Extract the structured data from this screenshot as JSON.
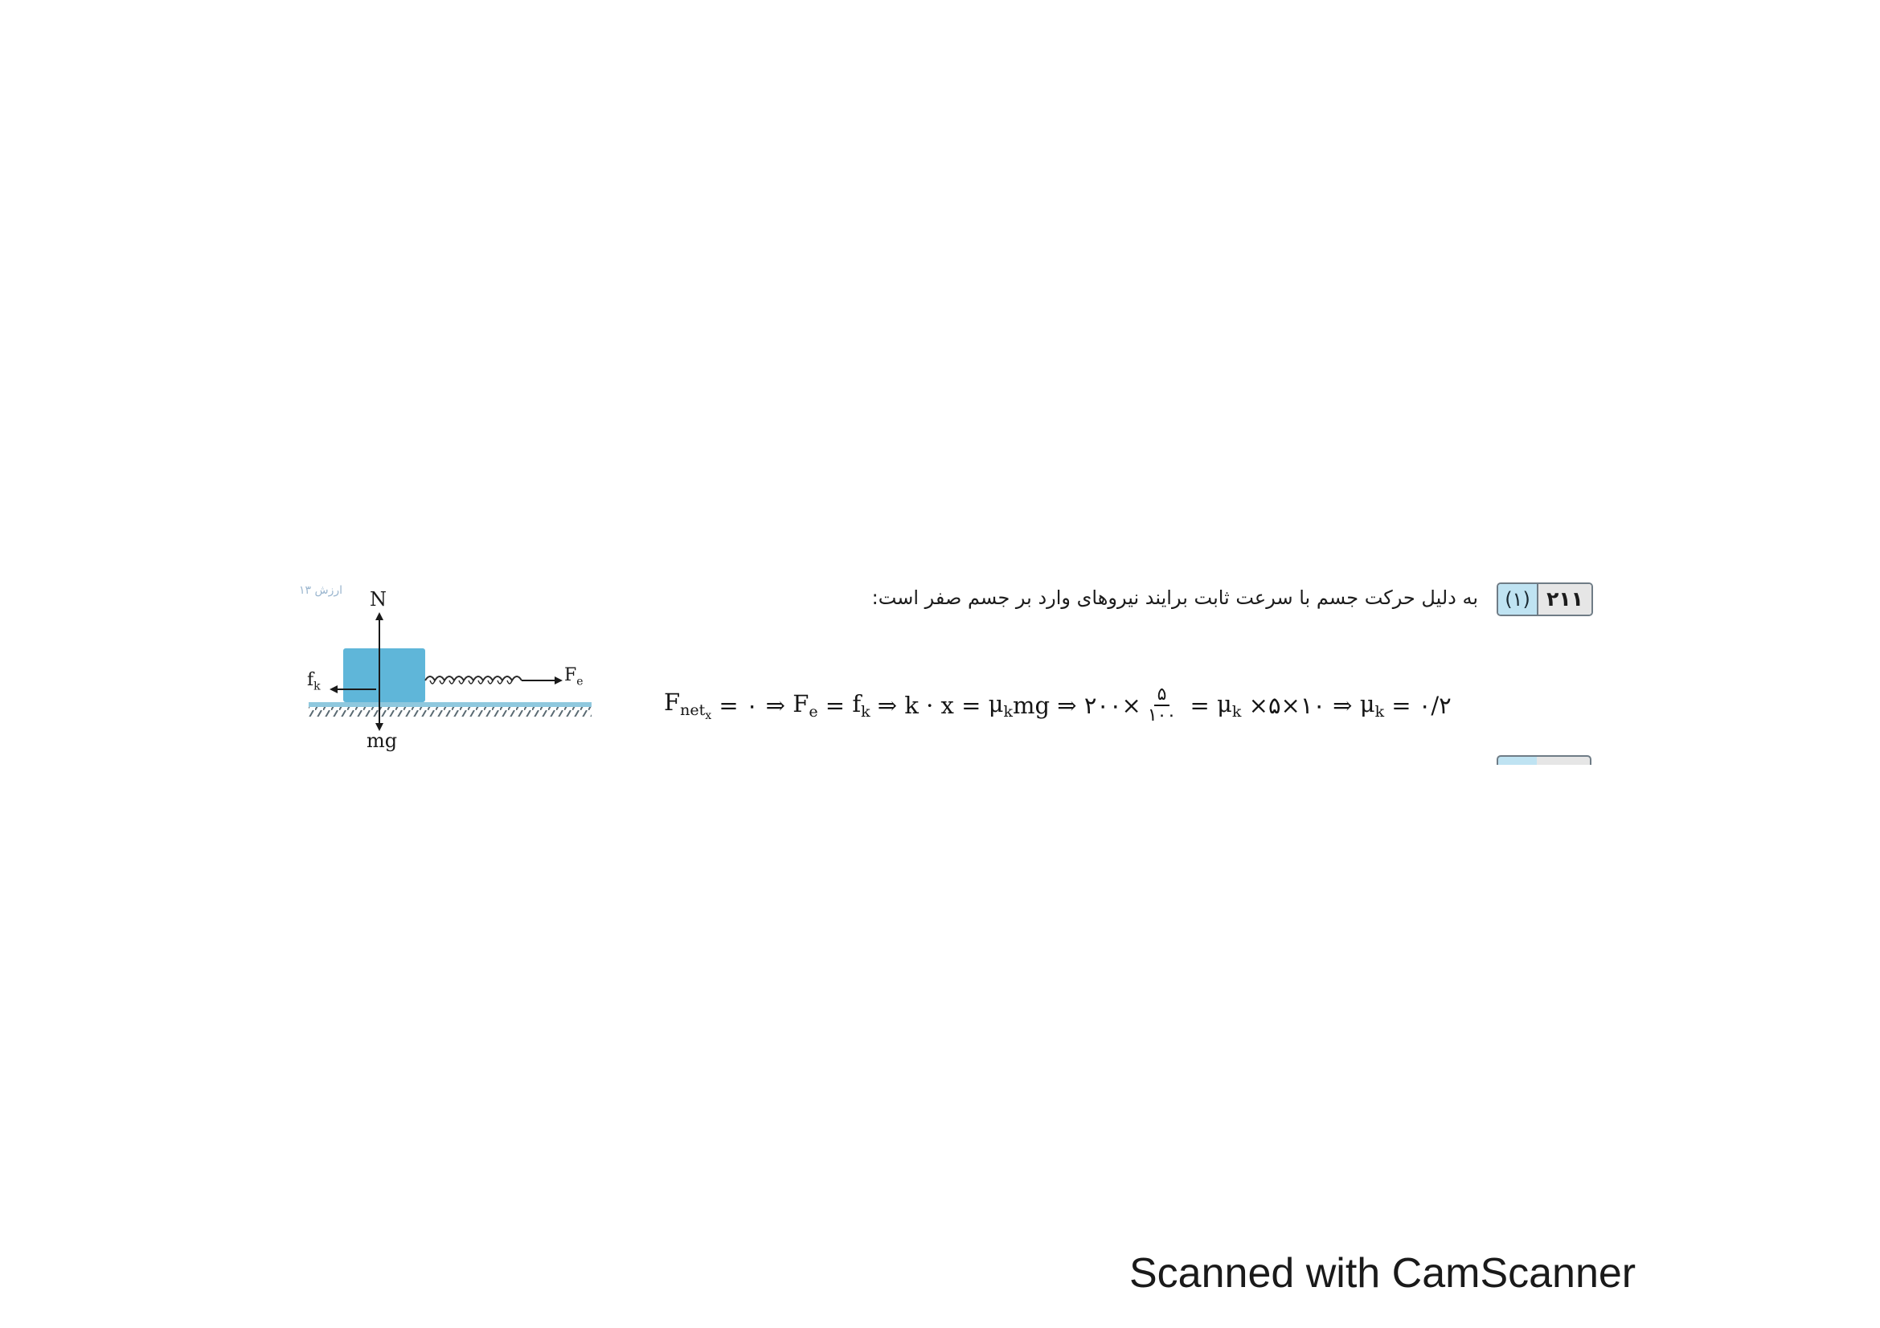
{
  "question": {
    "number": "۲۱۱",
    "answer": "(۱)",
    "text": "به دلیل حرکت جسم با سرعت ثابت برایند نیروهای وارد بر جسم صفر است:",
    "side_note": "ارزش ۱۳"
  },
  "equation": {
    "F": "F",
    "net": "net",
    "x": "x",
    "seg1": " = ۰ ⇒ ",
    "Fe_F": "F",
    "Fe_sub": "e",
    "seg2": " = ",
    "fk_f": "f",
    "fk_sub": "k",
    "seg3": " ⇒ k · x = ",
    "mu1": "μ",
    "mu1_sub": "k",
    "seg4": "mg ⇒ ۲۰۰×",
    "frac_num": "۵",
    "frac_den": "۱۰۰",
    "seg5": " = ",
    "mu2": "μ",
    "mu2_sub": "k",
    "seg6": " ×۵×۱۰ ⇒ ",
    "mu3": "μ",
    "mu3_sub": "k",
    "seg7": " = ۰/۲"
  },
  "diagram": {
    "label_N": "N",
    "label_mg": "mg",
    "label_fk": "f",
    "label_fk_sub": "k",
    "label_Fe": "F",
    "label_Fe_sub": "e",
    "block_color": "#5fb6d9",
    "ground_color": "#8fc8de"
  },
  "footer": {
    "text": "Scanned with CamScanner"
  }
}
